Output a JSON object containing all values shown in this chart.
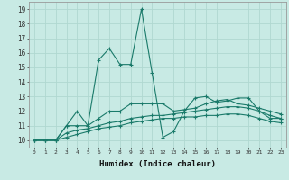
{
  "xlabel": "Humidex (Indice chaleur)",
  "bg_color": "#c8eae4",
  "grid_color": "#b0d8d0",
  "line_color": "#1a7a6a",
  "xlim": [
    -0.5,
    23.5
  ],
  "ylim": [
    9.5,
    19.5
  ],
  "xticks": [
    0,
    1,
    2,
    3,
    4,
    5,
    6,
    7,
    8,
    9,
    10,
    11,
    12,
    13,
    14,
    15,
    16,
    17,
    18,
    19,
    20,
    21,
    22,
    23
  ],
  "yticks": [
    10,
    11,
    12,
    13,
    14,
    15,
    16,
    17,
    18,
    19
  ],
  "series": [
    [
      10.0,
      10.0,
      10.0,
      11.0,
      12.0,
      11.0,
      15.5,
      16.3,
      15.2,
      15.2,
      19.0,
      14.6,
      10.2,
      10.6,
      12.0,
      12.9,
      13.0,
      12.6,
      12.7,
      12.9,
      12.9,
      12.0,
      11.5,
      11.5
    ],
    [
      10.0,
      10.0,
      10.0,
      11.0,
      11.0,
      11.0,
      11.5,
      12.0,
      12.0,
      12.5,
      12.5,
      12.5,
      12.5,
      12.0,
      12.1,
      12.2,
      12.5,
      12.7,
      12.8,
      12.5,
      12.4,
      12.2,
      12.0,
      11.8
    ],
    [
      10.0,
      10.0,
      10.0,
      10.5,
      10.7,
      10.8,
      11.0,
      11.2,
      11.3,
      11.5,
      11.6,
      11.7,
      11.7,
      11.8,
      11.9,
      12.0,
      12.1,
      12.2,
      12.3,
      12.3,
      12.2,
      12.0,
      11.7,
      11.5
    ],
    [
      10.0,
      10.0,
      10.0,
      10.2,
      10.4,
      10.6,
      10.8,
      10.9,
      11.0,
      11.2,
      11.3,
      11.4,
      11.5,
      11.5,
      11.6,
      11.6,
      11.7,
      11.7,
      11.8,
      11.8,
      11.7,
      11.5,
      11.3,
      11.2
    ]
  ]
}
